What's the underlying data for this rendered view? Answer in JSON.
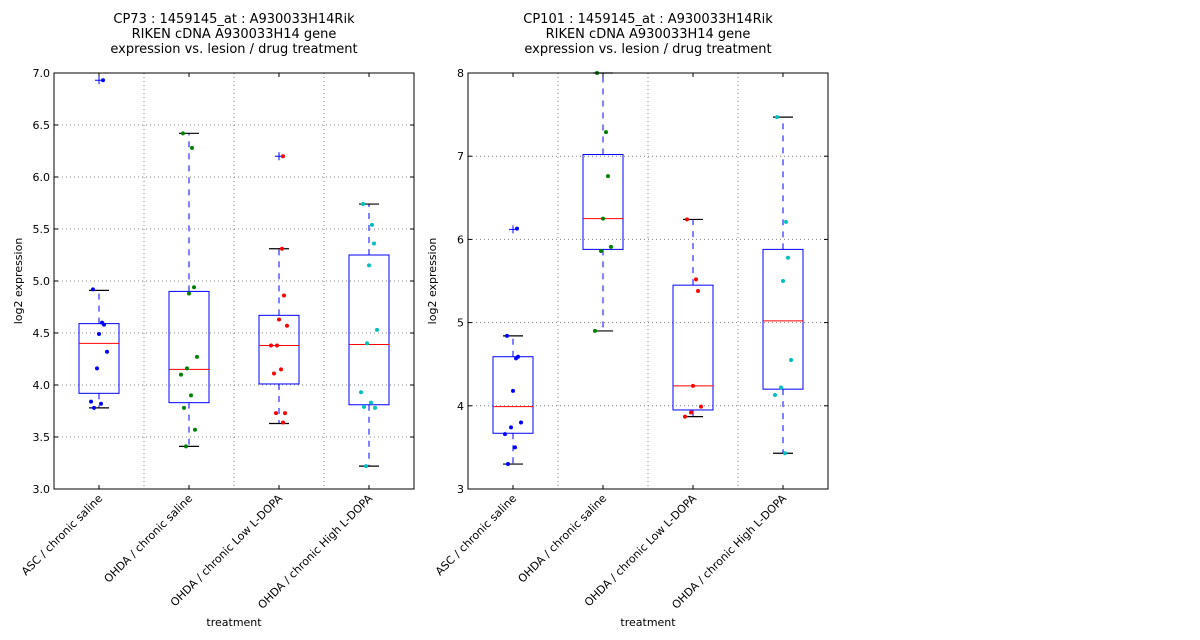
{
  "chart_data": [
    {
      "type": "box",
      "title": [
        "CP73 : 1459145_at : A930033H14Rik",
        "RIKEN cDNA A930033H14 gene",
        "expression vs. lesion / drug treatment"
      ],
      "xlabel": "treatment",
      "ylabel": "log2 expression",
      "ylim": [
        3.0,
        7.0
      ],
      "yticks": [
        "3.0",
        "3.5",
        "4.0",
        "4.5",
        "5.0",
        "5.5",
        "6.0",
        "6.5",
        "7.0"
      ],
      "ytick_values": [
        3.0,
        3.5,
        4.0,
        4.5,
        5.0,
        5.5,
        6.0,
        6.5,
        7.0
      ],
      "grid": true,
      "categories": [
        "ASC / chronic saline",
        "OHDA / chronic saline",
        "OHDA / chronic Low L-DOPA",
        "OHDA / chronic High L-DOPA"
      ],
      "point_colors": [
        "#0000ff",
        "#008000",
        "#ff0000",
        "#00bfbf"
      ],
      "boxes": [
        {
          "whislo": 3.78,
          "q1": 3.92,
          "med": 4.4,
          "q3": 4.59,
          "whishi": 4.91,
          "fliers": [
            6.93
          ],
          "points": [
            4.92,
            4.6,
            4.58,
            4.49,
            4.32,
            4.16,
            3.84,
            3.82,
            3.78,
            6.93
          ]
        },
        {
          "whislo": 3.41,
          "q1": 3.83,
          "med": 4.15,
          "q3": 4.9,
          "whishi": 6.42,
          "fliers": [],
          "points": [
            6.42,
            6.28,
            4.94,
            4.88,
            4.27,
            4.16,
            4.1,
            3.9,
            3.78,
            3.57,
            3.41
          ]
        },
        {
          "whislo": 3.63,
          "q1": 4.01,
          "med": 4.38,
          "q3": 4.67,
          "whishi": 5.31,
          "fliers": [
            6.2
          ],
          "points": [
            6.2,
            5.31,
            4.86,
            4.63,
            4.57,
            4.38,
            4.38,
            4.15,
            4.11,
            3.73,
            3.73,
            3.64
          ]
        },
        {
          "whislo": 3.22,
          "q1": 3.81,
          "med": 4.39,
          "q3": 5.25,
          "whishi": 5.74,
          "fliers": [],
          "points": [
            5.74,
            5.54,
            5.36,
            5.15,
            4.53,
            4.4,
            3.93,
            3.83,
            3.79,
            3.78,
            3.22
          ]
        }
      ]
    },
    {
      "type": "box",
      "title": [
        "CP101 : 1459145_at : A930033H14Rik",
        "RIKEN cDNA A930033H14 gene",
        "expression vs. lesion / drug treatment"
      ],
      "xlabel": "treatment",
      "ylabel": "log2 expression",
      "ylim": [
        3,
        8
      ],
      "yticks": [
        "3",
        "4",
        "5",
        "6",
        "7",
        "8"
      ],
      "ytick_values": [
        3,
        4,
        5,
        6,
        7,
        8
      ],
      "grid": true,
      "categories": [
        "ASC / chronic saline",
        "OHDA / chronic saline",
        "OHDA / chronic Low L-DOPA",
        "OHDA / chronic High L-DOPA"
      ],
      "point_colors": [
        "#0000ff",
        "#008000",
        "#ff0000",
        "#00bfbf"
      ],
      "boxes": [
        {
          "whislo": 3.3,
          "q1": 3.67,
          "med": 3.99,
          "q3": 4.59,
          "whishi": 4.84,
          "fliers": [
            6.12
          ],
          "points": [
            4.84,
            4.57,
            4.59,
            4.18,
            3.8,
            3.74,
            3.66,
            3.5,
            3.3,
            6.13
          ]
        },
        {
          "whislo": 4.9,
          "q1": 5.88,
          "med": 6.25,
          "q3": 7.02,
          "whishi": 8.0,
          "fliers": [],
          "points": [
            8.0,
            7.29,
            6.76,
            6.25,
            5.91,
            5.86,
            4.9
          ]
        },
        {
          "whislo": 3.87,
          "q1": 3.95,
          "med": 4.24,
          "q3": 5.45,
          "whishi": 6.24,
          "fliers": [],
          "points": [
            6.24,
            5.52,
            5.38,
            4.24,
            3.99,
            3.92,
            3.87
          ]
        },
        {
          "whislo": 3.43,
          "q1": 4.2,
          "med": 5.02,
          "q3": 5.88,
          "whishi": 7.47,
          "fliers": [],
          "points": [
            7.47,
            6.21,
            5.78,
            5.5,
            4.55,
            4.22,
            4.13,
            3.43
          ]
        }
      ]
    }
  ]
}
